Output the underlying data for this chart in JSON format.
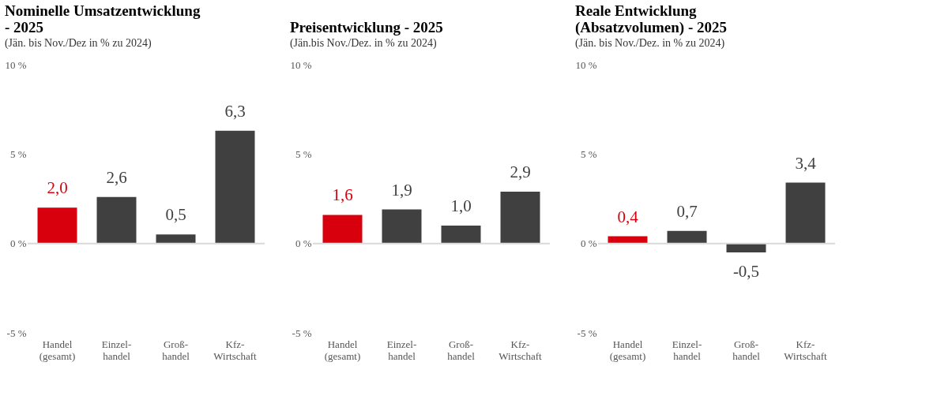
{
  "chart_data": [
    {
      "type": "bar",
      "title": "Nominelle Umsatzentwicklung - 2025",
      "subtitle": "(Jän. bis Nov./Dez in % zu 2024)",
      "categories": [
        "Handel\n(gesamt)",
        "Einzel-\nhandel",
        "Groß-\nhandel",
        "Kfz-\nWirtschaft"
      ],
      "values": [
        2.0,
        2.6,
        0.5,
        6.3
      ],
      "value_labels": [
        "2,0",
        "2,6",
        "0,5",
        "6,3"
      ],
      "colors": [
        "#d9000d",
        "#404040",
        "#404040",
        "#404040"
      ],
      "ylim": [
        -5,
        10
      ],
      "yticks": [
        {
          "value": -5,
          "label": "-5 %"
        },
        {
          "value": 0,
          "label": "0 %"
        },
        {
          "value": 5,
          "label": "5 %"
        },
        {
          "value": 10,
          "label": "10 %"
        }
      ],
      "ref_lines": [
        {
          "axis": "y",
          "value": 0,
          "color": "#d9d9d9"
        }
      ],
      "grid": false
    },
    {
      "type": "bar",
      "title": "Preisentwicklung - 2025",
      "subtitle": "(Jän.bis Nov./Dez. in % zu 2024)",
      "categories": [
        "Handel\n(gesamt)",
        "Einzel-\nhandel",
        "Groß-\nhandel",
        "Kfz-\nWirtschaft"
      ],
      "values": [
        1.6,
        1.9,
        1.0,
        2.9
      ],
      "value_labels": [
        "1,6",
        "1,9",
        "1,0",
        "2,9"
      ],
      "colors": [
        "#d9000d",
        "#404040",
        "#404040",
        "#404040"
      ],
      "ylim": [
        -5,
        10
      ],
      "yticks": [
        {
          "value": -5,
          "label": "-5 %"
        },
        {
          "value": 0,
          "label": "0 %"
        },
        {
          "value": 5,
          "label": "5 %"
        },
        {
          "value": 10,
          "label": "10 %"
        }
      ],
      "ref_lines": [
        {
          "axis": "y",
          "value": 0,
          "color": "#d9d9d9"
        }
      ],
      "grid": false
    },
    {
      "type": "bar",
      "title": "Reale Entwicklung (Absatzvolumen) - 2025",
      "subtitle": "(Jän. bis Nov./Dez. in % zu 2024)",
      "categories": [
        "Handel\n(gesamt)",
        "Einzel-\nhandel",
        "Groß-\nhandel",
        "Kfz-\nWirtschaft"
      ],
      "values": [
        0.4,
        0.7,
        -0.5,
        3.4
      ],
      "value_labels": [
        "0,4",
        "0,7",
        "-0,5",
        "3,4"
      ],
      "colors": [
        "#d9000d",
        "#404040",
        "#404040",
        "#404040"
      ],
      "ylim": [
        -5,
        10
      ],
      "yticks": [
        {
          "value": -5,
          "label": "-5 %"
        },
        {
          "value": 0,
          "label": "0 %"
        },
        {
          "value": 5,
          "label": "5 %"
        },
        {
          "value": 10,
          "label": "10 %"
        }
      ],
      "ref_lines": [
        {
          "axis": "y",
          "value": 0,
          "color": "#d9d9d9"
        }
      ],
      "grid": false
    }
  ]
}
